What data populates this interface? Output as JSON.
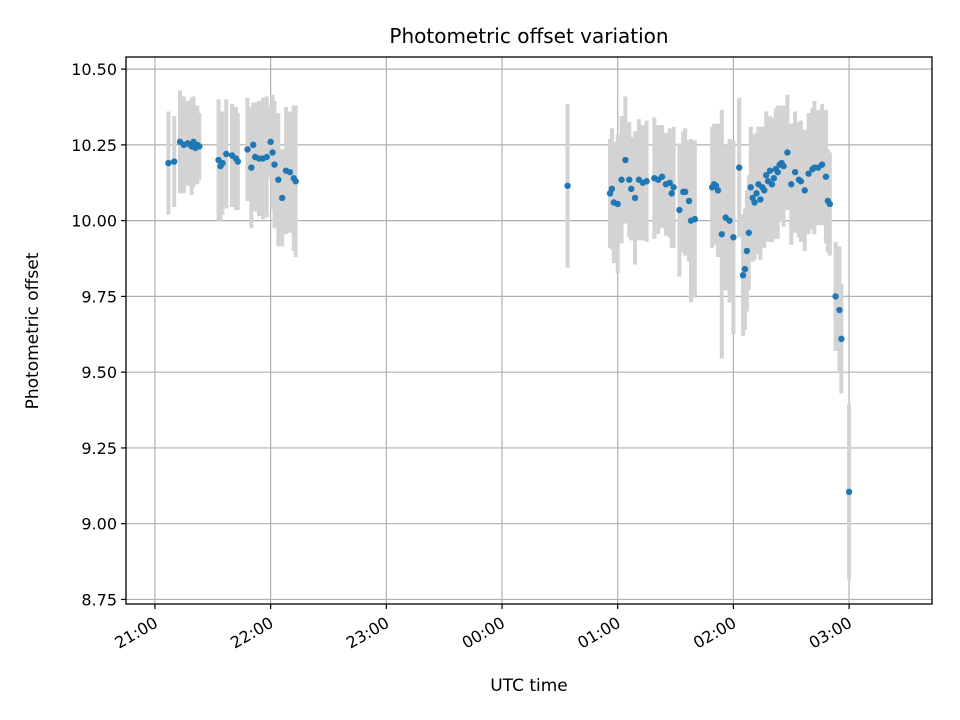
{
  "chart_data": {
    "type": "scatter",
    "title": "Photometric offset variation",
    "xlabel": "UTC time",
    "ylabel": "Photometric offset",
    "x_unit": "minutes",
    "xlim": [
      1245,
      1663
    ],
    "ylim": [
      8.735,
      10.54
    ],
    "yticks": [
      8.75,
      9.0,
      9.25,
      9.5,
      9.75,
      10.0,
      10.25,
      10.5
    ],
    "xticks": [
      {
        "value": 1260,
        "label": "21:00"
      },
      {
        "value": 1320,
        "label": "22:00"
      },
      {
        "value": 1380,
        "label": "23:00"
      },
      {
        "value": 1440,
        "label": "00:00"
      },
      {
        "value": 1500,
        "label": "01:00"
      },
      {
        "value": 1560,
        "label": "02:00"
      },
      {
        "value": 1620,
        "label": "03:00"
      }
    ],
    "grid": true,
    "colors": {
      "point": "#1f77b4",
      "errorbar": "#d3d3d3"
    },
    "series": [
      {
        "points": [
          [
            1267,
            10.19,
            0.17
          ],
          [
            1270,
            10.195,
            0.15
          ],
          [
            1273,
            10.26,
            0.17
          ],
          [
            1275,
            10.25,
            0.16
          ],
          [
            1277,
            10.255,
            0.14
          ],
          [
            1279,
            10.245,
            0.16
          ],
          [
            1280,
            10.26,
            0.15
          ],
          [
            1281,
            10.24,
            0.12
          ],
          [
            1282,
            10.25,
            0.13
          ],
          [
            1283,
            10.245,
            0.11
          ],
          [
            1293,
            10.2,
            0.2
          ],
          [
            1294,
            10.18,
            0.18
          ],
          [
            1295,
            10.19,
            0.17
          ],
          [
            1297,
            10.22,
            0.18
          ],
          [
            1300,
            10.215,
            0.17
          ],
          [
            1302,
            10.205,
            0.17
          ],
          [
            1303,
            10.195,
            0.16
          ],
          [
            1308,
            10.235,
            0.17
          ],
          [
            1310,
            10.175,
            0.2
          ],
          [
            1311,
            10.25,
            0.14
          ],
          [
            1312,
            10.21,
            0.18
          ],
          [
            1314,
            10.205,
            0.19
          ],
          [
            1316,
            10.205,
            0.2
          ],
          [
            1318,
            10.21,
            0.2
          ],
          [
            1320,
            10.26,
            0.12
          ],
          [
            1321,
            10.225,
            0.19
          ],
          [
            1322,
            10.185,
            0.21
          ],
          [
            1324,
            10.135,
            0.22
          ],
          [
            1326,
            10.075,
            0.16
          ],
          [
            1328,
            10.165,
            0.21
          ],
          [
            1330,
            10.16,
            0.2
          ],
          [
            1332,
            10.14,
            0.24
          ],
          [
            1333,
            10.13,
            0.25
          ],
          [
            1474,
            10.115,
            0.27
          ],
          [
            1496,
            10.09,
            0.18
          ],
          [
            1497,
            10.105,
            0.2
          ],
          [
            1498,
            10.06,
            0.2
          ],
          [
            1500,
            10.055,
            0.23
          ],
          [
            1502,
            10.135,
            0.21
          ],
          [
            1504,
            10.2,
            0.21
          ],
          [
            1506,
            10.135,
            0.19
          ],
          [
            1507,
            10.105,
            0.17
          ],
          [
            1509,
            10.075,
            0.22
          ],
          [
            1511,
            10.135,
            0.2
          ],
          [
            1513,
            10.125,
            0.19
          ],
          [
            1515,
            10.13,
            0.2
          ],
          [
            1519,
            10.14,
            0.2
          ],
          [
            1521,
            10.135,
            0.18
          ],
          [
            1523,
            10.145,
            0.17
          ],
          [
            1525,
            10.12,
            0.17
          ],
          [
            1527,
            10.125,
            0.18
          ],
          [
            1528,
            10.09,
            0.18
          ],
          [
            1529,
            10.11,
            0.2
          ],
          [
            1532,
            10.035,
            0.22
          ],
          [
            1534,
            10.095,
            0.2
          ],
          [
            1535,
            10.095,
            0.21
          ],
          [
            1537,
            10.065,
            0.2
          ],
          [
            1538,
            10.0,
            0.27
          ],
          [
            1540,
            10.005,
            0.26
          ],
          [
            1549,
            10.11,
            0.2
          ],
          [
            1550,
            10.12,
            0.2
          ],
          [
            1551,
            10.115,
            0.19
          ],
          [
            1552,
            10.1,
            0.22
          ],
          [
            1554,
            9.955,
            0.41
          ],
          [
            1556,
            10.01,
            0.24
          ],
          [
            1558,
            10.0,
            0.27
          ],
          [
            1560,
            9.945,
            0.32
          ],
          [
            1563,
            10.175,
            0.23
          ],
          [
            1565,
            9.82,
            0.2
          ],
          [
            1566,
            9.84,
            0.2
          ],
          [
            1567,
            9.9,
            0.2
          ],
          [
            1568,
            9.96,
            0.19
          ],
          [
            1569,
            10.11,
            0.2
          ],
          [
            1570,
            10.075,
            0.21
          ],
          [
            1571,
            10.06,
            0.19
          ],
          [
            1572,
            10.09,
            0.2
          ],
          [
            1573,
            10.12,
            0.19
          ],
          [
            1574,
            10.07,
            0.2
          ],
          [
            1575,
            10.11,
            0.2
          ],
          [
            1576,
            10.1,
            0.19
          ],
          [
            1577,
            10.15,
            0.21
          ],
          [
            1578,
            10.13,
            0.2
          ],
          [
            1579,
            10.165,
            0.18
          ],
          [
            1580,
            10.12,
            0.19
          ],
          [
            1581,
            10.14,
            0.2
          ],
          [
            1582,
            10.17,
            0.2
          ],
          [
            1583,
            10.16,
            0.22
          ],
          [
            1584,
            10.185,
            0.19
          ],
          [
            1585,
            10.19,
            0.19
          ],
          [
            1586,
            10.18,
            0.2
          ],
          [
            1588,
            10.225,
            0.19
          ],
          [
            1590,
            10.12,
            0.2
          ],
          [
            1592,
            10.16,
            0.2
          ],
          [
            1594,
            10.135,
            0.19
          ],
          [
            1595,
            10.13,
            0.2
          ],
          [
            1597,
            10.1,
            0.2
          ],
          [
            1599,
            10.155,
            0.2
          ],
          [
            1601,
            10.17,
            0.2
          ],
          [
            1602,
            10.175,
            0.22
          ],
          [
            1604,
            10.175,
            0.19
          ],
          [
            1606,
            10.185,
            0.2
          ],
          [
            1608,
            10.145,
            0.22
          ],
          [
            1609,
            10.065,
            0.17
          ],
          [
            1610,
            10.055,
            0.17
          ],
          [
            1613,
            9.75,
            0.18
          ],
          [
            1615,
            9.705,
            0.21
          ],
          [
            1616,
            9.61,
            0.18
          ],
          [
            1620,
            9.105,
            0.29
          ]
        ]
      }
    ]
  }
}
